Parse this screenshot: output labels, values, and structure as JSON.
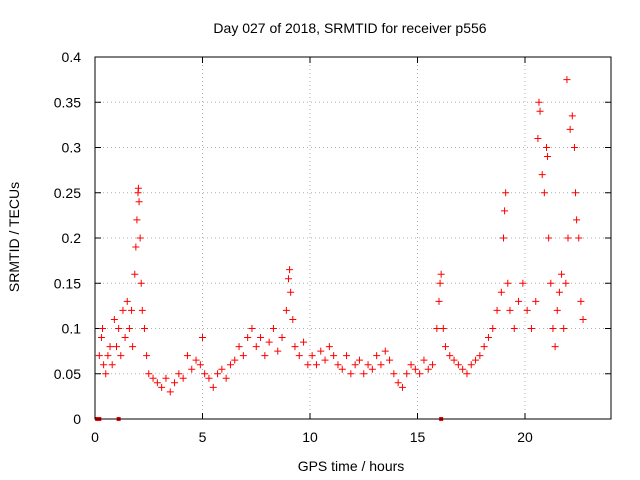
{
  "chart_data": {
    "type": "scatter",
    "title": "Day 027 of 2018, SRMTID for receiver p556",
    "xlabel": "GPS time / hours",
    "ylabel": "SRMTID / TECUs",
    "xlim": [
      0,
      24
    ],
    "ylim": [
      0,
      0.4
    ],
    "xticks": [
      0,
      5,
      10,
      15,
      20
    ],
    "xtick_labels": [
      "0",
      "5",
      "10",
      "15",
      "20"
    ],
    "yticks": [
      0,
      0.05,
      0.1,
      0.15,
      0.2,
      0.25,
      0.3,
      0.35,
      0.4
    ],
    "ytick_labels": [
      "0",
      "0.05",
      "0.1",
      "0.15",
      "0.2",
      "0.25",
      "0.3",
      "0.35",
      "0.4"
    ],
    "grid": true,
    "marker": "plus",
    "marker_color": "#ff0000",
    "series": [
      {
        "name": "SRMTID",
        "points": [
          [
            0.2,
            0.07
          ],
          [
            0.3,
            0.09
          ],
          [
            0.35,
            0.1
          ],
          [
            0.4,
            0.06
          ],
          [
            0.5,
            0.05
          ],
          [
            0.6,
            0.07
          ],
          [
            0.7,
            0.08
          ],
          [
            0.8,
            0.06
          ],
          [
            0.9,
            0.11
          ],
          [
            1.0,
            0.08
          ],
          [
            1.1,
            0.1
          ],
          [
            1.2,
            0.07
          ],
          [
            1.3,
            0.12
          ],
          [
            1.4,
            0.09
          ],
          [
            1.5,
            0.13
          ],
          [
            1.6,
            0.1
          ],
          [
            1.7,
            0.12
          ],
          [
            1.75,
            0.08
          ],
          [
            1.85,
            0.16
          ],
          [
            1.9,
            0.19
          ],
          [
            1.95,
            0.22
          ],
          [
            2.0,
            0.25
          ],
          [
            2.02,
            0.255
          ],
          [
            2.05,
            0.24
          ],
          [
            2.1,
            0.2
          ],
          [
            2.15,
            0.15
          ],
          [
            2.2,
            0.12
          ],
          [
            2.3,
            0.1
          ],
          [
            2.4,
            0.07
          ],
          [
            2.5,
            0.05
          ],
          [
            2.7,
            0.045
          ],
          [
            2.9,
            0.04
          ],
          [
            3.1,
            0.035
          ],
          [
            3.3,
            0.045
          ],
          [
            3.5,
            0.03
          ],
          [
            3.7,
            0.04
          ],
          [
            3.9,
            0.05
          ],
          [
            4.1,
            0.045
          ],
          [
            4.3,
            0.07
          ],
          [
            4.5,
            0.055
          ],
          [
            4.7,
            0.065
          ],
          [
            4.9,
            0.06
          ],
          [
            5.0,
            0.09
          ],
          [
            5.1,
            0.05
          ],
          [
            5.3,
            0.045
          ],
          [
            5.5,
            0.035
          ],
          [
            5.7,
            0.05
          ],
          [
            5.9,
            0.055
          ],
          [
            6.1,
            0.045
          ],
          [
            6.3,
            0.06
          ],
          [
            6.5,
            0.065
          ],
          [
            6.7,
            0.08
          ],
          [
            6.9,
            0.07
          ],
          [
            7.1,
            0.09
          ],
          [
            7.3,
            0.1
          ],
          [
            7.5,
            0.08
          ],
          [
            7.7,
            0.09
          ],
          [
            7.9,
            0.07
          ],
          [
            8.1,
            0.085
          ],
          [
            8.3,
            0.1
          ],
          [
            8.5,
            0.075
          ],
          [
            8.7,
            0.09
          ],
          [
            8.9,
            0.12
          ],
          [
            9.0,
            0.155
          ],
          [
            9.05,
            0.165
          ],
          [
            9.1,
            0.14
          ],
          [
            9.2,
            0.11
          ],
          [
            9.3,
            0.08
          ],
          [
            9.5,
            0.07
          ],
          [
            9.7,
            0.085
          ],
          [
            9.9,
            0.06
          ],
          [
            10.1,
            0.07
          ],
          [
            10.3,
            0.06
          ],
          [
            10.5,
            0.075
          ],
          [
            10.7,
            0.065
          ],
          [
            10.9,
            0.08
          ],
          [
            11.1,
            0.07
          ],
          [
            11.3,
            0.06
          ],
          [
            11.5,
            0.055
          ],
          [
            11.7,
            0.07
          ],
          [
            11.9,
            0.05
          ],
          [
            12.1,
            0.06
          ],
          [
            12.3,
            0.065
          ],
          [
            12.5,
            0.05
          ],
          [
            12.7,
            0.06
          ],
          [
            12.9,
            0.055
          ],
          [
            13.1,
            0.07
          ],
          [
            13.3,
            0.06
          ],
          [
            13.5,
            0.075
          ],
          [
            13.7,
            0.065
          ],
          [
            13.9,
            0.05
          ],
          [
            14.1,
            0.04
          ],
          [
            14.3,
            0.035
          ],
          [
            14.5,
            0.05
          ],
          [
            14.7,
            0.06
          ],
          [
            14.9,
            0.055
          ],
          [
            15.1,
            0.05
          ],
          [
            15.3,
            0.065
          ],
          [
            15.5,
            0.055
          ],
          [
            15.7,
            0.06
          ],
          [
            15.9,
            0.1
          ],
          [
            16.0,
            0.13
          ],
          [
            16.05,
            0.15
          ],
          [
            16.1,
            0.16
          ],
          [
            16.2,
            0.1
          ],
          [
            16.3,
            0.08
          ],
          [
            16.5,
            0.07
          ],
          [
            16.7,
            0.065
          ],
          [
            16.9,
            0.06
          ],
          [
            17.1,
            0.055
          ],
          [
            17.3,
            0.05
          ],
          [
            17.5,
            0.06
          ],
          [
            17.7,
            0.065
          ],
          [
            17.9,
            0.07
          ],
          [
            18.1,
            0.08
          ],
          [
            18.3,
            0.09
          ],
          [
            18.5,
            0.1
          ],
          [
            18.7,
            0.12
          ],
          [
            18.9,
            0.14
          ],
          [
            19.0,
            0.2
          ],
          [
            19.05,
            0.23
          ],
          [
            19.1,
            0.25
          ],
          [
            19.2,
            0.15
          ],
          [
            19.3,
            0.12
          ],
          [
            19.5,
            0.1
          ],
          [
            19.7,
            0.13
          ],
          [
            19.9,
            0.15
          ],
          [
            20.1,
            0.12
          ],
          [
            20.3,
            0.1
          ],
          [
            20.5,
            0.13
          ],
          [
            20.6,
            0.31
          ],
          [
            20.65,
            0.35
          ],
          [
            20.7,
            0.34
          ],
          [
            20.8,
            0.27
          ],
          [
            20.9,
            0.25
          ],
          [
            21.0,
            0.3
          ],
          [
            21.05,
            0.29
          ],
          [
            21.1,
            0.2
          ],
          [
            21.2,
            0.15
          ],
          [
            21.3,
            0.1
          ],
          [
            21.4,
            0.08
          ],
          [
            21.5,
            0.12
          ],
          [
            21.6,
            0.14
          ],
          [
            21.7,
            0.16
          ],
          [
            21.8,
            0.1
          ],
          [
            21.9,
            0.15
          ],
          [
            21.95,
            0.375
          ],
          [
            22.0,
            0.2
          ],
          [
            22.1,
            0.32
          ],
          [
            22.2,
            0.335
          ],
          [
            22.3,
            0.3
          ],
          [
            22.35,
            0.25
          ],
          [
            22.4,
            0.22
          ],
          [
            22.5,
            0.2
          ],
          [
            22.6,
            0.13
          ],
          [
            22.7,
            0.11
          ]
        ]
      }
    ],
    "baseline_markers_x": [
      0.1,
      0.2,
      1.1,
      16.1
    ]
  }
}
